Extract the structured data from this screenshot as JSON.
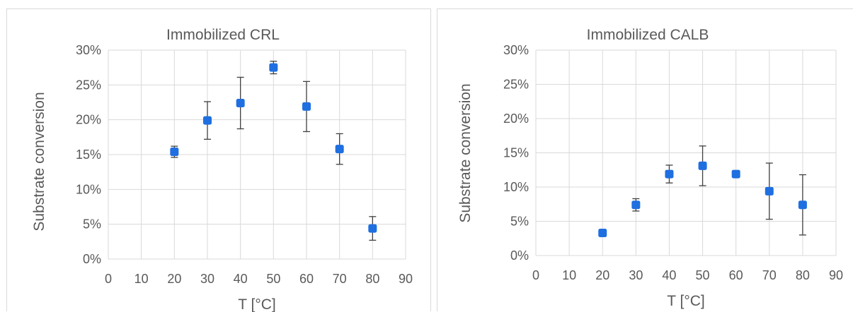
{
  "colors": {
    "marker": "#1f6fe0",
    "grid": "#d9d9d9",
    "text": "#595959",
    "error_bar": "#404040"
  },
  "chart_data": [
    {
      "type": "scatter",
      "title": "Immobilized CRL",
      "xlabel": "T [°C]",
      "ylabel": "Substrate conversion",
      "xlim": [
        0,
        90
      ],
      "ylim": [
        0,
        0.3
      ],
      "xticks": [
        "0",
        "10",
        "20",
        "30",
        "40",
        "50",
        "60",
        "70",
        "80",
        "90"
      ],
      "yticks": [
        "0%",
        "5%",
        "10%",
        "15%",
        "20%",
        "25%",
        "30%"
      ],
      "grid": true,
      "series": [
        {
          "x": [
            20,
            30,
            40,
            50,
            60,
            70,
            80
          ],
          "y": [
            0.154,
            0.199,
            0.224,
            0.275,
            0.219,
            0.158,
            0.044
          ],
          "error": [
            0.008,
            0.027,
            0.037,
            0.009,
            0.036,
            0.022,
            0.017
          ]
        }
      ]
    },
    {
      "type": "scatter",
      "title": "Immobilized CALB",
      "xlabel": "T [°C]",
      "ylabel": "Substrate conversion",
      "xlim": [
        0,
        90
      ],
      "ylim": [
        0,
        0.3
      ],
      "xticks": [
        "0",
        "10",
        "20",
        "30",
        "40",
        "50",
        "60",
        "70",
        "80",
        "90"
      ],
      "yticks": [
        "0%",
        "5%",
        "10%",
        "15%",
        "20%",
        "25%",
        "30%"
      ],
      "grid": true,
      "series": [
        {
          "x": [
            20,
            30,
            40,
            50,
            60,
            70,
            80
          ],
          "y": [
            0.033,
            0.074,
            0.119,
            0.131,
            0.119,
            0.094,
            0.074
          ],
          "error": [
            0.003,
            0.009,
            0.013,
            0.029,
            0.004,
            0.041,
            0.044
          ]
        }
      ]
    }
  ]
}
